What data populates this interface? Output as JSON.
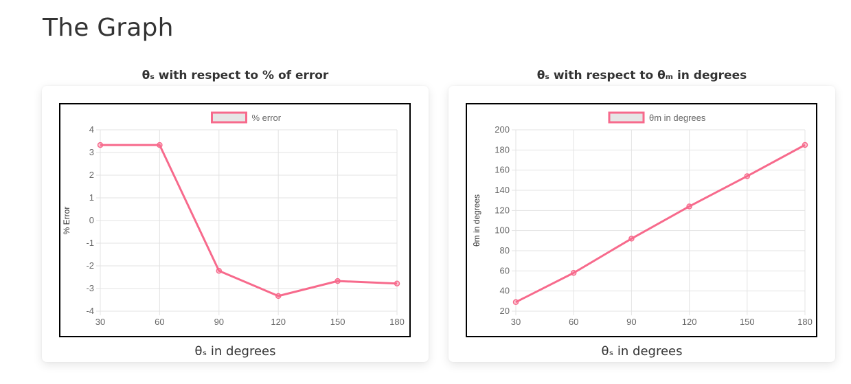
{
  "page": {
    "title": "The Graph"
  },
  "chart_data": [
    {
      "type": "line",
      "title": "θₛ with respect to % of error",
      "xlabel": "θₛ in degrees",
      "ylabel": "% Error",
      "categories": [
        "30",
        "60",
        "90",
        "120",
        "150",
        "180"
      ],
      "series": [
        {
          "name": "% error",
          "values": [
            3.33,
            3.33,
            -2.22,
            -3.33,
            -2.67,
            -2.78
          ]
        }
      ],
      "ylim": [
        -4,
        4
      ],
      "yticks": [
        "4",
        "3",
        "2",
        "1",
        "0",
        "-1",
        "-2",
        "-3",
        "-4"
      ],
      "grid": true,
      "legend": "top",
      "colors": {
        "line": "#f76a8c",
        "legend_fill": "#e6e6e6"
      }
    },
    {
      "type": "line",
      "title": "θₛ with respect to θₘ in degrees",
      "xlabel": "θₛ in degrees",
      "ylabel": "θm in degrees",
      "categories": [
        "30",
        "60",
        "90",
        "120",
        "150",
        "180"
      ],
      "series": [
        {
          "name": "θm in degrees",
          "values": [
            29,
            58,
            92,
            124,
            154,
            185
          ]
        }
      ],
      "ylim": [
        20,
        200
      ],
      "yticks": [
        "200",
        "180",
        "160",
        "140",
        "120",
        "100",
        "80",
        "60",
        "40",
        "20"
      ],
      "grid": true,
      "legend": "top",
      "colors": {
        "line": "#f76a8c",
        "legend_fill": "#e6e6e6"
      }
    }
  ]
}
